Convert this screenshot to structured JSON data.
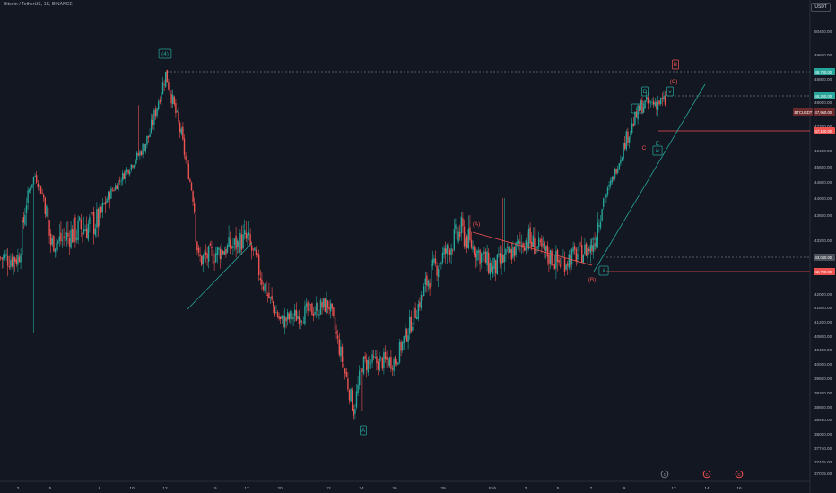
{
  "header": {
    "symbol_line": "Bitcoin / TetherUS, 1S, BINANCE",
    "unit_label": "USDT"
  },
  "colors": {
    "background": "#131722",
    "up": "#26a69a",
    "down": "#ef5350",
    "wave_teal": "#26a69a",
    "wave_red": "#ef5350",
    "axis_text": "#b2b5be",
    "dashed": "#9aa0a6"
  },
  "chart_data": {
    "type": "candlestick",
    "title": "",
    "xlabel": "",
    "ylabel": "",
    "y_ticks": [
      "50400.00",
      "49600.00",
      "48800.00",
      "48000.00",
      "47200.00",
      "46400.00",
      "45600.00",
      "44800.00",
      "44000.00",
      "43600.00",
      "43200.00",
      "42800.00",
      "42000.00",
      "41600.00",
      "41200.00",
      "40800.00",
      "40400.00",
      "40000.00",
      "39600.00",
      "39200.00",
      "38800.00",
      "38450.00",
      "38000.00",
      "37740.00",
      "37415.00",
      "37075.00"
    ],
    "x_ticks": [
      "3",
      "5",
      "8",
      "10",
      "12",
      "15",
      "17",
      "20",
      "22",
      "24",
      "26",
      "29",
      "Feb",
      "3",
      "5",
      "7",
      "9",
      "12",
      "14",
      "16"
    ],
    "price_labels": [
      {
        "text": "48,780.00",
        "kind": "level"
      },
      {
        "text": "48,200.00",
        "kind": "level"
      },
      {
        "text": "BTCUSDT",
        "kind": "symbol"
      },
      {
        "text": "47,960.00",
        "kind": "price"
      },
      {
        "text": "47,100.00",
        "kind": "level"
      },
      {
        "text": "43,040.00",
        "kind": "level"
      },
      {
        "text": "42,700.00",
        "kind": "level"
      }
    ],
    "wave_labels": [
      {
        "text": "(4)",
        "color": "teal",
        "box": true
      },
      {
        "text": "B",
        "color": "red",
        "box": true
      },
      {
        "text": "(C)",
        "color": "red",
        "box": false
      },
      {
        "text": "D",
        "color": "teal",
        "box": true
      },
      {
        "text": "v",
        "color": "teal",
        "box": true
      },
      {
        "text": "iii",
        "color": "teal",
        "box": true
      },
      {
        "text": "C",
        "color": "red",
        "box": false
      },
      {
        "text": "E",
        "color": "teal",
        "box": false
      },
      {
        "text": "iv",
        "color": "teal",
        "box": true
      },
      {
        "text": "(A)",
        "color": "red",
        "box": false
      },
      {
        "text": "i",
        "color": "teal",
        "box": true
      },
      {
        "text": "ii",
        "color": "teal",
        "box": true
      },
      {
        "text": "(B)",
        "color": "red",
        "box": false
      },
      {
        "text": "A",
        "color": "teal",
        "box": true
      }
    ],
    "event_markers": [
      {
        "text": "E",
        "color": "#787b86"
      },
      {
        "text": "D",
        "color": "#ef5350"
      },
      {
        "text": "D",
        "color": "#ef5350"
      }
    ],
    "key_points": [
      {
        "x": "3",
        "y": 42750
      },
      {
        "x": "4",
        "y": 45200
      },
      {
        "x": "5",
        "y": 43100
      },
      {
        "x": "8",
        "y": 43550
      },
      {
        "x": "11",
        "y": 46900
      },
      {
        "x": "12",
        "y": 48960
      },
      {
        "x": "13",
        "y": 46800
      },
      {
        "x": "14",
        "y": 42700
      },
      {
        "x": "17",
        "y": 43200
      },
      {
        "x": "20",
        "y": 41200
      },
      {
        "x": "22",
        "y": 41700
      },
      {
        "x": "23.5",
        "y": 38700
      },
      {
        "x": "24",
        "y": 40000
      },
      {
        "x": "26",
        "y": 40100
      },
      {
        "x": "28",
        "y": 42300
      },
      {
        "x": "30",
        "y": 43350
      },
      {
        "x": "Feb 1",
        "y": 42500
      },
      {
        "x": "Feb 3",
        "y": 43200
      },
      {
        "x": "Feb 5",
        "y": 42650
      },
      {
        "x": "Feb 7",
        "y": 43000
      },
      {
        "x": "Feb 8",
        "y": 44400
      },
      {
        "x": "Feb 9",
        "y": 46700
      },
      {
        "x": "Feb 10",
        "y": 47900
      },
      {
        "x": "Feb 11",
        "y": 48000
      }
    ]
  }
}
